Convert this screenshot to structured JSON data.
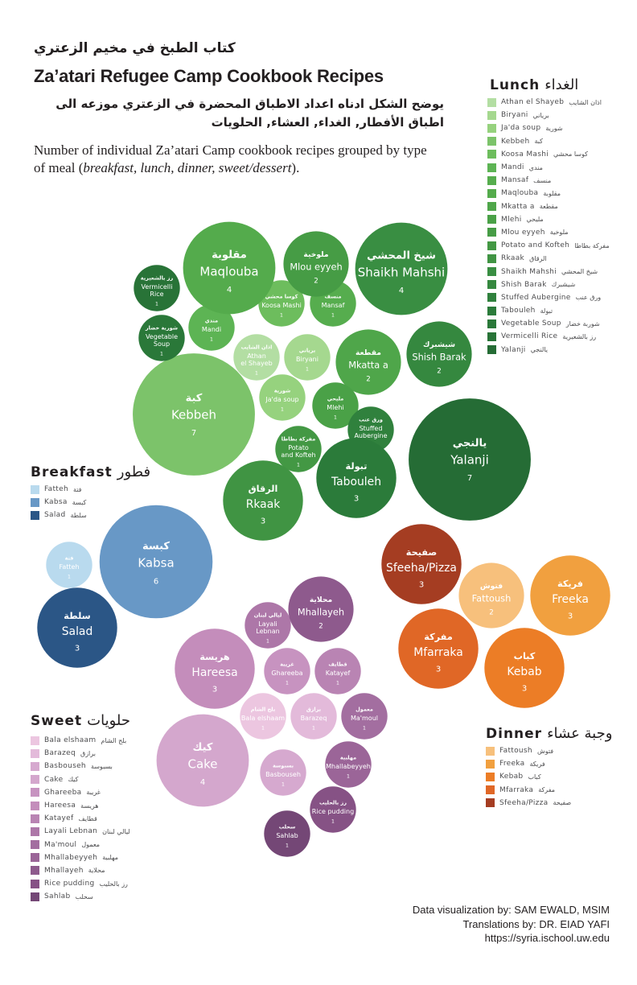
{
  "header": {
    "title_ar": "كتاب الطبخ في مخيم الزعتري",
    "title_en": "Za’atari Refugee Camp Cookbook Recipes",
    "desc_ar": "يوضح الشكل ادناه اعداد الاطباق المحضرة في الزعتري موزعه الى اطباق الأفطار, الغداء, العشاء, الحلويات",
    "desc_en_pre": "Number of individual Za’atari Camp cookbook recipes grouped by type of  meal (",
    "desc_en_meals": "breakfast, lunch, dinner, sweet/dessert",
    "desc_en_post": ")."
  },
  "credits": {
    "line1": "Data visualization by: SAM EWALD, MSIM",
    "line2": "Translations by: DR. EIAD YAFI",
    "line3": "https://syria.ischool.uw.edu"
  },
  "legends": {
    "lunch": {
      "title_en": "Lunch",
      "title_ar": "الغداء"
    },
    "breakfast": {
      "title_en": "Breakfast",
      "title_ar": "فطور"
    },
    "sweet": {
      "title_en": "Sweet",
      "title_ar": "حلويات"
    },
    "dinner": {
      "title_en": "Dinner",
      "title_ar": "وجبة عشاء"
    }
  },
  "chart_data": {
    "type": "bubble",
    "title": "Za’atari Refugee Camp Cookbook Recipes",
    "value_label": "Number of individual recipes",
    "groups": [
      {
        "name": "Lunch",
        "items": [
          {
            "name": "Athan el Shayeb",
            "ar": "اذان الشايب",
            "value": 1,
            "color": "#b3dea3"
          },
          {
            "name": "Biryani",
            "ar": "برياني",
            "value": 1,
            "color": "#a5d88f"
          },
          {
            "name": "Ja'da soup",
            "ar": "شورية",
            "value": 1,
            "color": "#96d27e"
          },
          {
            "name": "Kebbeh",
            "ar": "كبة",
            "value": 7,
            "color": "#7cc36a"
          },
          {
            "name": "Koosa Mashi",
            "ar": "كوسا محشي",
            "value": 1,
            "color": "#6dbd5d"
          },
          {
            "name": "Mandi",
            "ar": "مندي",
            "value": 1,
            "color": "#5db454"
          },
          {
            "name": "Mansaf",
            "ar": "منسف",
            "value": 1,
            "color": "#56ad4e"
          },
          {
            "name": "Maqlouba",
            "ar": "مقلوبة",
            "value": 4,
            "color": "#54ab4c"
          },
          {
            "name": "Mkatta a",
            "ar": "مقطعة",
            "value": 2,
            "color": "#4fa64a"
          },
          {
            "name": "Mlehi",
            "ar": "مليحي",
            "value": 1,
            "color": "#4aa147"
          },
          {
            "name": "Mlou eyyeh",
            "ar": "ملوخية",
            "value": 2,
            "color": "#469c45"
          },
          {
            "name": "Potato and Kofteh",
            "ar": "مفركة بطاطا",
            "value": 1,
            "color": "#439844"
          },
          {
            "name": "Rkaak",
            "ar": "الرقاق",
            "value": 3,
            "color": "#409443"
          },
          {
            "name": "Shaikh Mahshi",
            "ar": "شيخ المحشي",
            "value": 4,
            "color": "#398e42"
          },
          {
            "name": "Shish Barak",
            "ar": "شيشبرك",
            "value": 2,
            "color": "#35883f"
          },
          {
            "name": "Stuffed Aubergine",
            "ar": "ورق عنب",
            "value": 1,
            "color": "#30813d"
          },
          {
            "name": "Tabouleh",
            "ar": "تبولة",
            "value": 3,
            "color": "#2b7b3a"
          },
          {
            "name": "Vegetable Soup",
            "ar": "شوربة خضار",
            "value": 1,
            "color": "#2a7839"
          },
          {
            "name": "Vermicelli Rice",
            "ar": "رز بالشعيرية",
            "value": 1,
            "color": "#287337"
          },
          {
            "name": "Yalanji",
            "ar": "يالنجي",
            "value": 7,
            "color": "#256c35"
          }
        ]
      },
      {
        "name": "Breakfast",
        "items": [
          {
            "name": "Fatteh",
            "ar": "فتة",
            "value": 1,
            "color": "#b9daee"
          },
          {
            "name": "Kabsa",
            "ar": "كبسة",
            "value": 6,
            "color": "#6898c6"
          },
          {
            "name": "Salad",
            "ar": "سلطة",
            "value": 3,
            "color": "#2b5686"
          }
        ]
      },
      {
        "name": "Dinner",
        "items": [
          {
            "name": "Fattoush",
            "ar": "فتوش",
            "value": 2,
            "color": "#f7c07c"
          },
          {
            "name": "Freeka",
            "ar": "فريكة",
            "value": 3,
            "color": "#f1a03f"
          },
          {
            "name": "Kebab",
            "ar": "كباب",
            "value": 3,
            "color": "#ec7d26"
          },
          {
            "name": "Mfarraka",
            "ar": "مفركة",
            "value": 3,
            "color": "#e06726"
          },
          {
            "name": "Sfeeha/Pizza",
            "ar": "صفيحة",
            "value": 3,
            "color": "#a53d22"
          }
        ]
      },
      {
        "name": "Sweet",
        "items": [
          {
            "name": "Bala elshaam",
            "ar": "بلح الشام",
            "value": 1,
            "color": "#ecc6e0"
          },
          {
            "name": "Barazeq",
            "ar": "برازق",
            "value": 1,
            "color": "#e3bada"
          },
          {
            "name": "Basbouseh",
            "ar": "بسبوسة",
            "value": 1,
            "color": "#d6a9cf"
          },
          {
            "name": "Cake",
            "ar": "كيك",
            "value": 4,
            "color": "#d4a7cd"
          },
          {
            "name": "Ghareeba",
            "ar": "غريبة",
            "value": 1,
            "color": "#c793c0"
          },
          {
            "name": "Hareesa",
            "ar": "هريسة",
            "value": 3,
            "color": "#c48dbb"
          },
          {
            "name": "Katayef",
            "ar": "قطايف",
            "value": 1,
            "color": "#b984b3"
          },
          {
            "name": "Layali Lebnan",
            "ar": "ليالي لبنان",
            "value": 1,
            "color": "#ad77a8"
          },
          {
            "name": "Ma'moul",
            "ar": "معمول",
            "value": 1,
            "color": "#a36ea0"
          },
          {
            "name": "Mhallabeyyeh",
            "ar": "مهلبية",
            "value": 1,
            "color": "#9b6598"
          },
          {
            "name": "Mhallayeh",
            "ar": "محلاية",
            "value": 2,
            "color": "#8e5a8d"
          },
          {
            "name": "Rice pudding",
            "ar": "رز بالحليب",
            "value": 1,
            "color": "#865285"
          },
          {
            "name": "Sahlab",
            "ar": "سحلب",
            "value": 1,
            "color": "#744776"
          }
        ]
      }
    ]
  }
}
